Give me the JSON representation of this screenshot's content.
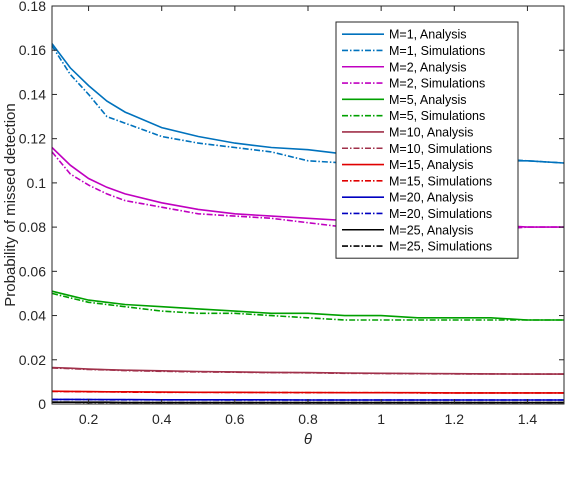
{
  "chart_data": {
    "type": "line",
    "title": "",
    "xlabel": "θ",
    "ylabel": "Probability of missed detection",
    "xlim": [
      0.1,
      1.5
    ],
    "ylim": [
      0,
      0.18
    ],
    "xticks": [
      0.2,
      0.4,
      0.6,
      0.8,
      1,
      1.2,
      1.4
    ],
    "xtick_labels": [
      "0.2",
      "0.4",
      "0.6",
      "0.8",
      "1",
      "1.2",
      "1.4"
    ],
    "yticks": [
      0,
      0.02,
      0.04,
      0.06,
      0.08,
      0.1,
      0.12,
      0.14,
      0.16,
      0.18
    ],
    "ytick_labels": [
      "0",
      "0.02",
      "0.04",
      "0.06",
      "0.08",
      "0.1",
      "0.12",
      "0.14",
      "0.16",
      "0.18"
    ],
    "grid": false,
    "legend_position": "top-right",
    "x": [
      0.1,
      0.15,
      0.2,
      0.25,
      0.3,
      0.4,
      0.5,
      0.6,
      0.7,
      0.8,
      0.9,
      1.0,
      1.1,
      1.2,
      1.3,
      1.4,
      1.5
    ],
    "series": [
      {
        "name": "M=1, Analysis",
        "style": "solid",
        "color": "#0072BD",
        "values": [
          0.163,
          0.152,
          0.144,
          0.137,
          0.132,
          0.125,
          0.121,
          0.118,
          0.116,
          0.115,
          0.113,
          0.112,
          0.111,
          0.111,
          0.11,
          0.11,
          0.109
        ]
      },
      {
        "name": "M=1, Simulations",
        "style": "dashdot",
        "color": "#0072BD",
        "values": [
          0.162,
          0.149,
          0.14,
          0.13,
          0.127,
          0.121,
          0.118,
          0.116,
          0.114,
          0.11,
          0.109,
          0.108,
          0.109,
          0.11,
          0.111,
          0.11,
          0.109
        ]
      },
      {
        "name": "M=2, Analysis",
        "style": "solid",
        "color": "#C000C0",
        "values": [
          0.116,
          0.108,
          0.102,
          0.098,
          0.095,
          0.091,
          0.088,
          0.086,
          0.085,
          0.084,
          0.083,
          0.082,
          0.082,
          0.081,
          0.081,
          0.08,
          0.08
        ]
      },
      {
        "name": "M=2, Simulations",
        "style": "dashdot",
        "color": "#C000C0",
        "values": [
          0.114,
          0.104,
          0.099,
          0.095,
          0.092,
          0.089,
          0.086,
          0.085,
          0.084,
          0.082,
          0.08,
          0.08,
          0.08,
          0.08,
          0.079,
          0.08,
          0.08
        ]
      },
      {
        "name": "M=5, Analysis",
        "style": "solid",
        "color": "#00A000",
        "values": [
          0.051,
          0.049,
          0.047,
          0.046,
          0.045,
          0.044,
          0.043,
          0.042,
          0.041,
          0.041,
          0.04,
          0.04,
          0.039,
          0.039,
          0.039,
          0.038,
          0.038
        ]
      },
      {
        "name": "M=5, Simulations",
        "style": "dashdot",
        "color": "#00A000",
        "values": [
          0.05,
          0.048,
          0.046,
          0.045,
          0.044,
          0.042,
          0.041,
          0.041,
          0.04,
          0.039,
          0.038,
          0.038,
          0.038,
          0.038,
          0.038,
          0.038,
          0.038
        ]
      },
      {
        "name": "M=10, Analysis",
        "style": "solid",
        "color": "#A0304A",
        "values": [
          0.0165,
          0.0162,
          0.0158,
          0.0155,
          0.0153,
          0.015,
          0.0147,
          0.0145,
          0.0143,
          0.0142,
          0.014,
          0.0139,
          0.0138,
          0.0137,
          0.0136,
          0.0135,
          0.0135
        ]
      },
      {
        "name": "M=10, Simulations",
        "style": "dashdot",
        "color": "#A0304A",
        "values": [
          0.0163,
          0.016,
          0.0156,
          0.0154,
          0.0151,
          0.0148,
          0.0145,
          0.0144,
          0.0142,
          0.0141,
          0.0139,
          0.0138,
          0.0137,
          0.0136,
          0.0136,
          0.0135,
          0.0135
        ]
      },
      {
        "name": "M=15, Analysis",
        "style": "solid",
        "color": "#E00000",
        "values": [
          0.0058,
          0.0057,
          0.0056,
          0.0055,
          0.0055,
          0.0054,
          0.0053,
          0.0053,
          0.0052,
          0.0052,
          0.0051,
          0.0051,
          0.0051,
          0.005,
          0.005,
          0.005,
          0.005
        ]
      },
      {
        "name": "M=15, Simulations",
        "style": "dashdot",
        "color": "#E00000",
        "values": [
          0.0057,
          0.0056,
          0.0055,
          0.0055,
          0.0054,
          0.0053,
          0.0053,
          0.0052,
          0.0052,
          0.0051,
          0.0051,
          0.0051,
          0.005,
          0.005,
          0.005,
          0.005,
          0.005
        ]
      },
      {
        "name": "M=20, Analysis",
        "style": "solid",
        "color": "#0000C0",
        "values": [
          0.0021,
          0.0021,
          0.002,
          0.002,
          0.002,
          0.0019,
          0.0019,
          0.0019,
          0.0019,
          0.0018,
          0.0018,
          0.0018,
          0.0018,
          0.0018,
          0.0018,
          0.0018,
          0.0018
        ]
      },
      {
        "name": "M=20, Simulations",
        "style": "dashdot",
        "color": "#0000C0",
        "values": [
          0.002,
          0.002,
          0.002,
          0.0019,
          0.0019,
          0.0019,
          0.0019,
          0.0018,
          0.0018,
          0.0018,
          0.0018,
          0.0018,
          0.0018,
          0.0018,
          0.0018,
          0.0018,
          0.0018
        ]
      },
      {
        "name": "M=25, Analysis",
        "style": "solid",
        "color": "#000000",
        "values": [
          0.0008,
          0.0008,
          0.0008,
          0.0008,
          0.0007,
          0.0007,
          0.0007,
          0.0007,
          0.0007,
          0.0007,
          0.0007,
          0.0007,
          0.0007,
          0.0007,
          0.0007,
          0.0007,
          0.0007
        ]
      },
      {
        "name": "M=25, Simulations",
        "style": "dashdot",
        "color": "#000000",
        "values": [
          0.0008,
          0.0008,
          0.0007,
          0.0007,
          0.0007,
          0.0007,
          0.0007,
          0.0007,
          0.0007,
          0.0007,
          0.0007,
          0.0007,
          0.0007,
          0.0007,
          0.0007,
          0.0007,
          0.0007
        ]
      }
    ]
  }
}
